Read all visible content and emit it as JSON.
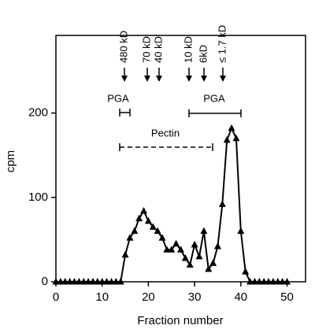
{
  "chart_data": {
    "type": "line",
    "x_label": "Fraction number",
    "y_label": "cpm",
    "x": [
      0,
      1,
      2,
      3,
      4,
      5,
      6,
      7,
      8,
      9,
      10,
      11,
      12,
      13,
      14,
      15,
      16,
      17,
      18,
      19,
      20,
      21,
      22,
      23,
      24,
      25,
      26,
      27,
      28,
      29,
      30,
      31,
      32,
      33,
      34,
      35,
      36,
      37,
      38,
      39,
      40,
      41,
      42,
      43,
      44,
      45,
      46,
      47,
      48,
      49,
      50
    ],
    "series": [
      {
        "name": "cpm",
        "color": "#000000",
        "values": [
          0,
          0,
          0,
          0,
          0,
          0,
          0,
          0,
          0,
          0,
          0,
          0,
          0,
          0,
          0,
          32,
          52,
          60,
          75,
          84,
          72,
          65,
          60,
          52,
          38,
          38,
          45,
          38,
          28,
          20,
          44,
          30,
          60,
          15,
          22,
          42,
          92,
          168,
          182,
          170,
          60,
          12,
          0,
          0,
          0,
          0,
          0,
          0,
          0,
          0,
          0
        ]
      }
    ],
    "xlim": [
      0,
      54
    ],
    "ylim": [
      0,
      292
    ],
    "xticks": [
      0,
      10,
      20,
      30,
      40,
      50
    ],
    "yticks": [
      0,
      100,
      200
    ],
    "annotations": [
      "480 kD",
      "70 kD",
      "40 kD",
      "10 kD",
      "6kD",
      "≤ 1.7 kD",
      "PGA",
      "PGA",
      "Pectin"
    ]
  }
}
